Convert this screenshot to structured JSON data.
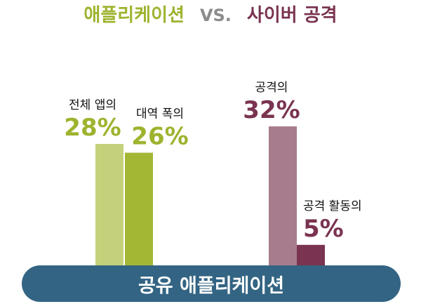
{
  "title": {
    "left": "애플리케이션",
    "vs": "VS.",
    "right": "사이버 공격",
    "left_color": "#9eb32e",
    "vs_color": "#8c8c8c",
    "right_color": "#7a3350"
  },
  "footer": {
    "label": "공유 애플리케이션",
    "color": "#336483"
  },
  "chart_data": {
    "type": "bar",
    "categories": [
      "전체 앱의",
      "대역 폭의",
      "공격의",
      "공격 활동의"
    ],
    "values": [
      28,
      26,
      32,
      5
    ],
    "value_labels": [
      "28%",
      "26%",
      "32%",
      "5%"
    ],
    "groups": [
      "애플리케이션",
      "사이버 공격"
    ],
    "group_of": [
      0,
      0,
      1,
      1
    ],
    "colors": [
      "#c5d17a",
      "#a3b734",
      "#a77d8e",
      "#7a3350"
    ],
    "label_colors": [
      "#9eb32e",
      "#9eb32e",
      "#7a3350",
      "#7a3350"
    ],
    "unit": "%",
    "ylim": [
      0,
      32
    ],
    "xlabel": "공유 애플리케이션",
    "ylabel": "",
    "grid": false,
    "legend": "none"
  }
}
